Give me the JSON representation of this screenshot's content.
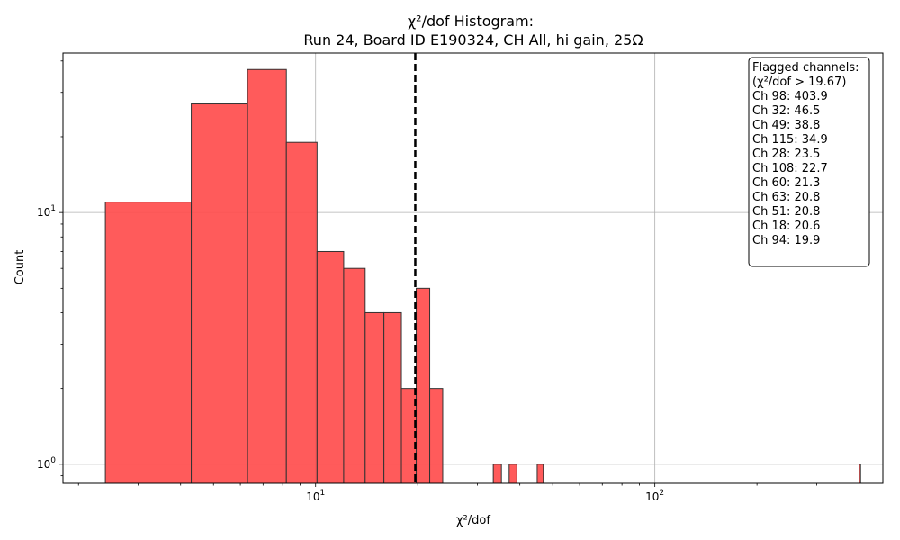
{
  "chart_data": {
    "type": "bar",
    "title": "χ²/dof Histogram:",
    "subtitle": "Run 24, Board ID E190324, CH All, hi gain, 25Ω",
    "xlabel": "χ²/dof",
    "ylabel": "Count",
    "x_scale": "log",
    "y_scale": "log",
    "xlim": [
      1.8,
      470
    ],
    "ylim": [
      0.84,
      43
    ],
    "bar_color": "#ff4d4d",
    "edge_color": "#333333",
    "grid": true,
    "x_ticks": [
      {
        "base": "10",
        "exp": "1",
        "value": 10
      },
      {
        "base": "10",
        "exp": "2",
        "value": 100
      }
    ],
    "y_ticks": [
      {
        "base": "10",
        "exp": "0",
        "value": 1
      },
      {
        "base": "10",
        "exp": "1",
        "value": 10
      }
    ],
    "bins": [
      {
        "x0": 2.4,
        "x1": 4.3,
        "count": 11
      },
      {
        "x0": 4.3,
        "x1": 6.3,
        "count": 27
      },
      {
        "x0": 6.3,
        "x1": 8.2,
        "count": 37
      },
      {
        "x0": 8.2,
        "x1": 10.1,
        "count": 19
      },
      {
        "x0": 10.1,
        "x1": 12.1,
        "count": 7
      },
      {
        "x0": 12.1,
        "x1": 14.0,
        "count": 6
      },
      {
        "x0": 14.0,
        "x1": 15.9,
        "count": 4
      },
      {
        "x0": 15.9,
        "x1": 17.9,
        "count": 4
      },
      {
        "x0": 17.9,
        "x1": 19.8,
        "count": 2
      },
      {
        "x0": 19.8,
        "x1": 21.7,
        "count": 5
      },
      {
        "x0": 21.7,
        "x1": 23.7,
        "count": 2
      },
      {
        "x0": 33.4,
        "x1": 35.3,
        "count": 1
      },
      {
        "x0": 37.2,
        "x1": 39.2,
        "count": 1
      },
      {
        "x0": 45.0,
        "x1": 46.9,
        "count": 1
      },
      {
        "x0": 400.0,
        "x1": 404.0,
        "count": 1
      }
    ],
    "threshold": {
      "value": 19.67,
      "style": "dashed",
      "color": "#000000"
    },
    "legend": {
      "placement": "top-right",
      "lines": [
        "Flagged channels:",
        "(χ²/dof > 19.67)",
        "Ch 98: 403.9",
        "Ch 32: 46.5",
        "Ch 49: 38.8",
        "Ch 115: 34.9",
        "Ch 28: 23.5",
        "Ch 108: 22.7",
        "Ch 60: 21.3",
        "Ch 63: 20.8",
        "Ch 51: 20.8",
        "Ch 18: 20.6",
        "Ch 94: 19.9"
      ]
    }
  }
}
